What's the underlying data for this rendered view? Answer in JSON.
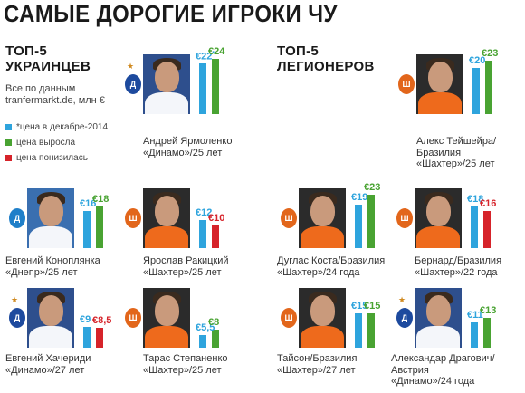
{
  "title": "САМЫЕ ДОРОГИЕ ИГРОКИ ЧУ",
  "ukr": {
    "title_line1": "ТОП-5",
    "title_line2": "УКРАИНЦЕВ"
  },
  "leg": {
    "title_line1": "ТОП-5",
    "title_line2": "ЛЕГИОНЕРОВ"
  },
  "source": {
    "line1": "Все по данным",
    "line2": "tranfermarkt.de, млн €"
  },
  "legend": [
    {
      "label": "*цена в декабре-2014",
      "color": "#2ea4dd"
    },
    {
      "label": "цена выросла",
      "color": "#49a332"
    },
    {
      "label": "цена понизилась",
      "color": "#d6232a"
    }
  ],
  "players": [
    {
      "name": "Андрей Ярмоленко",
      "line2": "«Динамо»/25 лет",
      "line3": "",
      "old": "€22",
      "old_star": "*",
      "new": "€24",
      "old_value": 22,
      "new_value": 24,
      "trend": "up",
      "club": "dynamo",
      "club_icon": "dynamo-logo-icon"
    },
    {
      "name": "Евгений Коноплянка",
      "line2": "«Днепр»/25 лет",
      "line3": "",
      "old": "€16",
      "old_star": "",
      "new": "€18",
      "old_value": 16,
      "new_value": 18,
      "trend": "up",
      "club": "dnipro",
      "club_icon": "dnipro-logo-icon"
    },
    {
      "name": "Ярослав Ракицкий",
      "line2": "«Шахтер»/25 лет",
      "line3": "",
      "old": "€12",
      "old_star": "",
      "new": "€10",
      "old_value": 12,
      "new_value": 10,
      "trend": "down",
      "club": "shakhtar",
      "club_icon": "shakhtar-logo-icon"
    },
    {
      "name": "Евгений Хачериди",
      "line2": "«Динамо»/27 лет",
      "line3": "",
      "old": "€9",
      "old_star": "",
      "new": "€8,5",
      "old_value": 9,
      "new_value": 8.5,
      "trend": "down",
      "club": "dynamo",
      "club_icon": "dynamo-logo-icon"
    },
    {
      "name": "Тарас Степаненко",
      "line2": "«Шахтер»/25 лет",
      "line3": "",
      "old": "€5,5",
      "old_star": "",
      "new": "€8",
      "old_value": 5.5,
      "new_value": 8,
      "trend": "up",
      "club": "shakhtar",
      "club_icon": "shakhtar-logo-icon"
    },
    {
      "name": "Алекс Тейшейра/",
      "line2": "Бразилия",
      "line3": "«Шахтер»/25 лет",
      "old": "€20",
      "old_star": "",
      "new": "€23",
      "old_value": 20,
      "new_value": 23,
      "trend": "up",
      "club": "shakhtar",
      "club_icon": "shakhtar-logo-icon"
    },
    {
      "name": "Дуглас Коста/Бразилия",
      "line2": "«Шахтер»/24 года",
      "line3": "",
      "old": "€19",
      "old_star": "",
      "new": "€23",
      "old_value": 19,
      "new_value": 23,
      "trend": "up",
      "club": "shakhtar",
      "club_icon": "shakhtar-logo-icon"
    },
    {
      "name": "Бернард/Бразилия",
      "line2": "«Шахтер»/22 года",
      "line3": "",
      "old": "€18",
      "old_star": "",
      "new": "€16",
      "old_value": 18,
      "new_value": 16,
      "trend": "down",
      "club": "shakhtar",
      "club_icon": "shakhtar-logo-icon"
    },
    {
      "name": "Тайсон/Бразилия",
      "line2": "«Шахтер»/27 лет",
      "line3": "",
      "old": "€15",
      "old_star": "",
      "new": "€15",
      "old_value": 15,
      "new_value": 15,
      "trend": "up",
      "club": "shakhtar",
      "club_icon": "shakhtar-logo-icon"
    },
    {
      "name": "Александар Драгович/",
      "line2": "Австрия",
      "line3": "«Динамо»/24 года",
      "old": "€11",
      "old_star": "",
      "new": "€13",
      "old_value": 11,
      "new_value": 13,
      "trend": "up",
      "club": "dynamo",
      "club_icon": "dynamo-logo-icon"
    }
  ],
  "colors": {
    "blue": "#2ea4dd",
    "green": "#49a332",
    "red": "#d6232a",
    "dynamo": "#1d4a9e",
    "shakhtar": "#e2661b",
    "dnipro": "#1f7fc9"
  }
}
